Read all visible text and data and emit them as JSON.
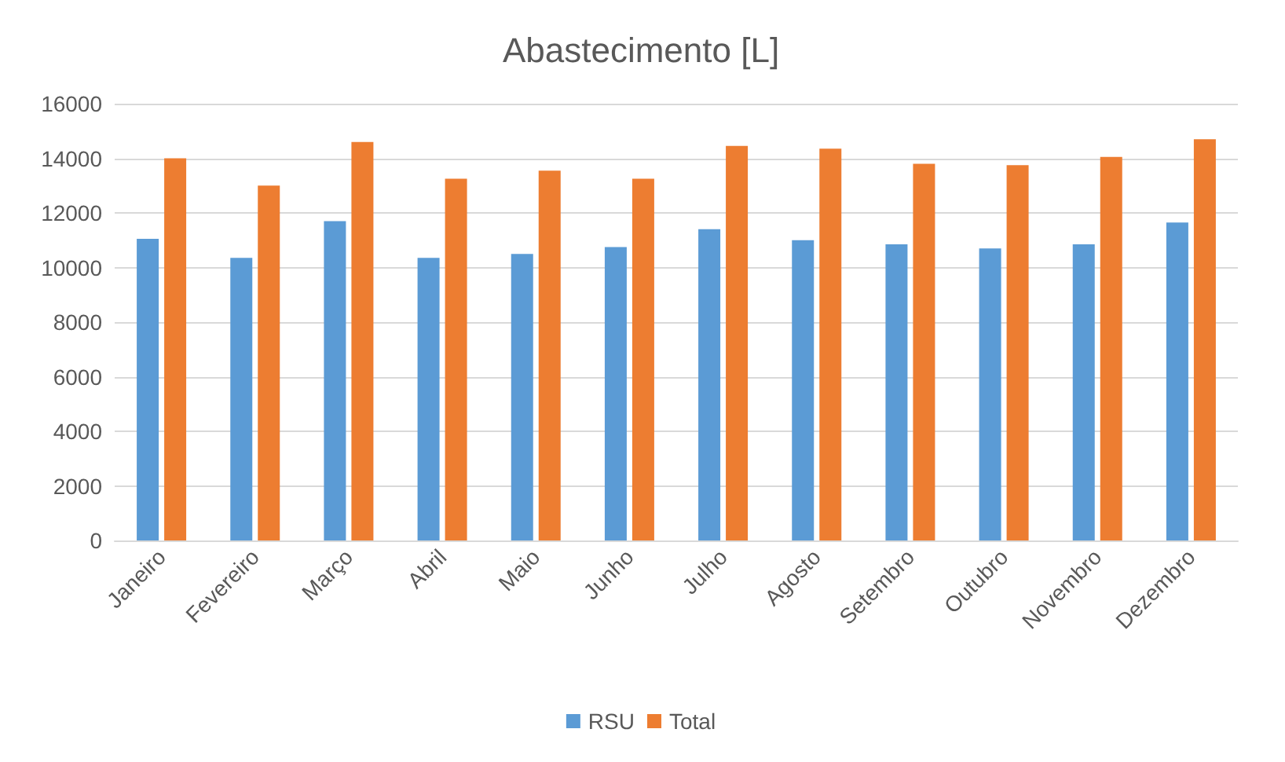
{
  "chart_data": {
    "type": "bar",
    "title": "Abastecimento [L]",
    "categories": [
      "Janeiro",
      "Fevereiro",
      "Março",
      "Abril",
      "Maio",
      "Junho",
      "Julho",
      "Agosto",
      "Setembro",
      "Outubro",
      "Novembro",
      "Dezembro"
    ],
    "series": [
      {
        "name": "RSU",
        "color": "#5b9bd5",
        "values": [
          11050,
          10350,
          11700,
          10350,
          10500,
          10750,
          11400,
          11000,
          10850,
          10700,
          10850,
          11650
        ]
      },
      {
        "name": "Total",
        "color": "#ed7d31",
        "values": [
          14000,
          13000,
          14600,
          13250,
          13550,
          13250,
          14450,
          14350,
          13800,
          13750,
          14050,
          14700
        ]
      }
    ],
    "ylim": [
      0,
      16000
    ],
    "yticks": [
      0,
      2000,
      4000,
      6000,
      8000,
      10000,
      12000,
      14000,
      16000
    ],
    "grid": "y",
    "legend": "bottom"
  }
}
